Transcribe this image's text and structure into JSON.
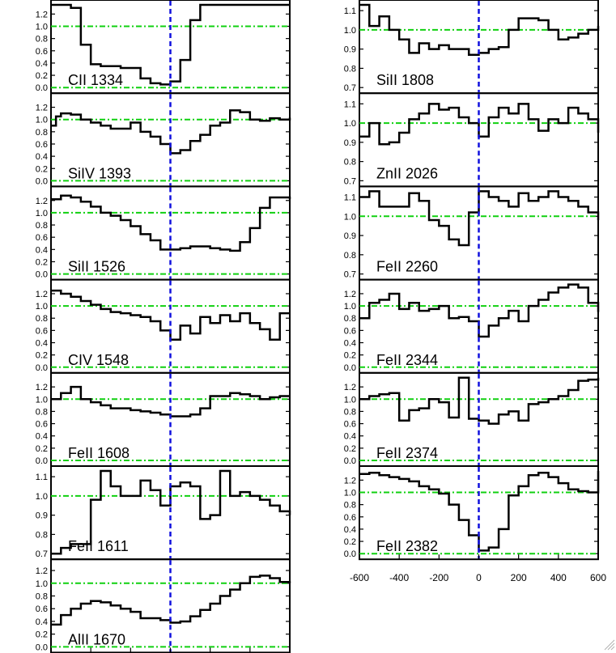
{
  "chart_data": {
    "type": "line",
    "xlim": [
      -600,
      600
    ],
    "x_ticks": [
      "-600",
      "-400",
      "-200",
      "0",
      "200",
      "400",
      "600"
    ],
    "continuum_level": 1.0,
    "zero_velocity": 0,
    "colors": {
      "spectrum": "#000000",
      "continuum": "#10d010",
      "zero_line": "#1010dd"
    },
    "panels": [
      {
        "column": 0,
        "label": "CII 1334",
        "ylim": [
          0,
          1.35
        ],
        "yticks": [
          "0.0",
          "0.2",
          "0.4",
          "0.6",
          "0.8",
          "1.0",
          "1.2"
        ],
        "x": [
          -600,
          -500,
          -450,
          -400,
          -350,
          -300,
          -250,
          -200,
          -150,
          -100,
          -50,
          0,
          50,
          100,
          150
        ],
        "y": [
          1.35,
          1.3,
          0.7,
          0.38,
          0.35,
          0.35,
          0.32,
          0.32,
          0.15,
          0.07,
          0.05,
          0.1,
          0.45,
          1.1,
          1.35
        ]
      },
      {
        "column": 0,
        "label": "SiIV 1393",
        "ylim": [
          0,
          1.35
        ],
        "yticks": [
          "0.0",
          "0.2",
          "0.4",
          "0.6",
          "0.8",
          "1.0",
          "1.2"
        ],
        "x": [
          -600,
          -575,
          -550,
          -500,
          -450,
          -400,
          -350,
          -300,
          -250,
          -200,
          -150,
          -100,
          -50,
          0,
          50,
          100,
          150,
          200,
          250,
          300,
          350,
          400,
          450,
          500,
          550,
          600
        ],
        "y": [
          0.9,
          1.05,
          1.1,
          1.08,
          1.0,
          0.95,
          0.9,
          0.85,
          0.85,
          0.95,
          0.8,
          0.72,
          0.6,
          0.45,
          0.5,
          0.65,
          0.75,
          0.9,
          0.95,
          1.15,
          1.12,
          1.0,
          0.98,
          1.02,
          1.0,
          1.03
        ]
      },
      {
        "column": 0,
        "label": "SiII 1526",
        "ylim": [
          0,
          1.35
        ],
        "yticks": [
          "0.0",
          "0.2",
          "0.4",
          "0.6",
          "0.8",
          "1.0",
          "1.2"
        ],
        "x": [
          -600,
          -550,
          -500,
          -450,
          -400,
          -350,
          -300,
          -250,
          -200,
          -150,
          -100,
          -50,
          0,
          50,
          100,
          150,
          200,
          250,
          300,
          350,
          400,
          450,
          500,
          550,
          600
        ],
        "y": [
          1.22,
          1.28,
          1.25,
          1.18,
          1.1,
          1.0,
          0.95,
          0.88,
          0.78,
          0.65,
          0.55,
          0.4,
          0.4,
          0.42,
          0.45,
          0.45,
          0.42,
          0.4,
          0.38,
          0.52,
          0.75,
          1.08,
          1.25,
          1.25,
          1.22
        ]
      },
      {
        "column": 0,
        "label": "CIV 1548",
        "ylim": [
          0,
          1.35
        ],
        "yticks": [
          "0.0",
          "0.2",
          "0.4",
          "0.6",
          "0.8",
          "1.0",
          "1.2"
        ],
        "x": [
          -600,
          -550,
          -500,
          -450,
          -400,
          -350,
          -300,
          -250,
          -200,
          -150,
          -100,
          -50,
          0,
          50,
          100,
          150,
          200,
          250,
          300,
          350,
          400,
          450,
          500,
          550,
          600
        ],
        "y": [
          1.25,
          1.2,
          1.15,
          1.08,
          1.02,
          0.95,
          0.9,
          0.88,
          0.85,
          0.82,
          0.75,
          0.6,
          0.45,
          0.68,
          0.55,
          0.82,
          0.72,
          0.85,
          0.75,
          0.88,
          0.72,
          0.62,
          0.45,
          0.88,
          0.88
        ]
      },
      {
        "column": 0,
        "label": "FeII 1608",
        "ylim": [
          0,
          1.35
        ],
        "yticks": [
          "0.0",
          "0.2",
          "0.4",
          "0.6",
          "0.8",
          "1.0",
          "1.2"
        ],
        "x": [
          -600,
          -550,
          -500,
          -450,
          -400,
          -350,
          -300,
          -250,
          -200,
          -150,
          -100,
          -50,
          0,
          50,
          100,
          150,
          200,
          250,
          300,
          350,
          400,
          450,
          500,
          550,
          600
        ],
        "y": [
          1.0,
          1.1,
          1.2,
          1.0,
          0.95,
          0.9,
          0.85,
          0.85,
          0.82,
          0.8,
          0.78,
          0.75,
          0.72,
          0.72,
          0.75,
          0.85,
          1.05,
          1.05,
          1.1,
          1.08,
          1.05,
          1.0,
          1.03,
          1.05,
          1.05
        ]
      },
      {
        "column": 0,
        "label": "FeII 1611",
        "ylim": [
          0.7,
          1.13
        ],
        "yticks": [
          "0.7",
          "0.8",
          "0.9",
          "1.0",
          "1.1"
        ],
        "x": [
          -600,
          -550,
          -500,
          -450,
          -400,
          -350,
          -300,
          -250,
          -200,
          -150,
          -100,
          -50,
          0,
          50,
          100,
          150,
          200,
          250,
          300,
          350,
          400,
          450,
          500,
          550,
          600
        ],
        "y": [
          0.7,
          0.73,
          0.75,
          0.75,
          0.98,
          1.13,
          1.05,
          1.0,
          1.0,
          1.08,
          1.03,
          0.95,
          1.05,
          1.07,
          1.05,
          0.88,
          0.9,
          1.13,
          1.0,
          1.02,
          1.0,
          0.98,
          0.95,
          0.92,
          0.9
        ]
      },
      {
        "column": 0,
        "label": "AlII 1670",
        "ylim": [
          0,
          1.3
        ],
        "yticks": [
          "0.0",
          "0.2",
          "0.4",
          "0.6",
          "0.8",
          "1.0",
          "1.2"
        ],
        "x": [
          -600,
          -550,
          -500,
          -450,
          -400,
          -350,
          -300,
          -250,
          -200,
          -150,
          -100,
          -50,
          0,
          50,
          100,
          150,
          200,
          250,
          300,
          350,
          400,
          450,
          500,
          550,
          600
        ],
        "y": [
          0.35,
          0.5,
          0.6,
          0.68,
          0.72,
          0.7,
          0.65,
          0.6,
          0.55,
          0.45,
          0.45,
          0.42,
          0.38,
          0.4,
          0.48,
          0.58,
          0.68,
          0.8,
          0.9,
          1.0,
          1.1,
          1.12,
          1.08,
          1.02,
          1.03
        ]
      },
      {
        "column": 1,
        "label": "SiII 1808",
        "ylim": [
          0.7,
          1.13
        ],
        "yticks": [
          "0.7",
          "0.8",
          "0.9",
          "1.0",
          "1.1"
        ],
        "x": [
          -600,
          -550,
          -500,
          -450,
          -400,
          -350,
          -300,
          -250,
          -200,
          -150,
          -100,
          -50,
          0,
          50,
          100,
          150,
          200,
          250,
          300,
          350,
          400,
          450,
          500,
          550,
          600
        ],
        "y": [
          1.13,
          1.02,
          1.07,
          1.0,
          0.95,
          0.88,
          0.93,
          0.9,
          0.92,
          0.9,
          0.9,
          0.87,
          0.88,
          0.9,
          0.91,
          1.0,
          1.06,
          1.06,
          1.05,
          1.0,
          0.95,
          0.96,
          0.98,
          1.0,
          1.02
        ]
      },
      {
        "column": 1,
        "label": "ZnII 2026",
        "ylim": [
          0.7,
          1.13
        ],
        "yticks": [
          "0.7",
          "0.8",
          "0.9",
          "1.0",
          "1.1"
        ],
        "x": [
          -600,
          -550,
          -500,
          -450,
          -400,
          -350,
          -300,
          -250,
          -200,
          -150,
          -100,
          -50,
          0,
          50,
          100,
          150,
          200,
          250,
          300,
          350,
          400,
          450,
          500,
          550,
          600
        ],
        "y": [
          0.93,
          1.0,
          0.89,
          0.9,
          0.95,
          1.02,
          1.05,
          1.1,
          1.07,
          1.08,
          1.03,
          1.0,
          0.93,
          1.03,
          1.08,
          1.05,
          1.1,
          1.02,
          0.96,
          1.02,
          1.0,
          1.08,
          1.05,
          1.02,
          0.95
        ]
      },
      {
        "column": 1,
        "label": "FeII 2260",
        "ylim": [
          0.7,
          1.13
        ],
        "yticks": [
          "0.7",
          "0.8",
          "0.9",
          "1.0",
          "1.1"
        ],
        "x": [
          -600,
          -550,
          -500,
          -450,
          -400,
          -350,
          -300,
          -250,
          -200,
          -150,
          -100,
          -50,
          0,
          50,
          100,
          150,
          200,
          250,
          300,
          350,
          400,
          450,
          500,
          550,
          600
        ],
        "y": [
          1.1,
          1.13,
          1.05,
          1.05,
          1.05,
          1.12,
          1.08,
          0.98,
          0.95,
          0.88,
          0.85,
          1.02,
          1.13,
          1.1,
          1.08,
          1.05,
          1.12,
          1.08,
          1.1,
          1.13,
          1.1,
          1.08,
          1.05,
          1.02,
          0.98
        ]
      },
      {
        "column": 1,
        "label": "FeII 2344",
        "ylim": [
          0,
          1.35
        ],
        "yticks": [
          "0.0",
          "0.2",
          "0.4",
          "0.6",
          "0.8",
          "1.0",
          "1.2"
        ],
        "x": [
          -600,
          -550,
          -500,
          -450,
          -400,
          -350,
          -300,
          -250,
          -200,
          -150,
          -100,
          -50,
          0,
          50,
          100,
          150,
          200,
          250,
          300,
          350,
          400,
          450,
          500,
          550,
          600
        ],
        "y": [
          0.8,
          1.05,
          1.1,
          1.2,
          0.95,
          1.05,
          0.92,
          0.95,
          1.0,
          0.8,
          0.82,
          0.75,
          0.5,
          0.68,
          0.8,
          0.92,
          0.75,
          1.0,
          1.1,
          1.22,
          1.3,
          1.35,
          1.3,
          1.05,
          0.9
        ]
      },
      {
        "column": 1,
        "label": "FeII 2374",
        "ylim": [
          0,
          1.35
        ],
        "yticks": [
          "0.0",
          "0.2",
          "0.4",
          "0.6",
          "0.8",
          "1.0",
          "1.2"
        ],
        "x": [
          -600,
          -550,
          -500,
          -450,
          -400,
          -350,
          -300,
          -250,
          -200,
          -150,
          -100,
          -50,
          0,
          50,
          100,
          150,
          200,
          250,
          300,
          350,
          400,
          450,
          500,
          550,
          600
        ],
        "y": [
          1.0,
          1.05,
          1.08,
          1.1,
          0.65,
          0.82,
          0.85,
          1.0,
          0.95,
          0.7,
          1.35,
          0.68,
          0.65,
          0.6,
          0.75,
          0.8,
          0.65,
          0.92,
          0.95,
          1.0,
          1.05,
          1.15,
          1.3,
          1.32,
          1.35
        ]
      },
      {
        "column": 1,
        "label": "FeII 2382",
        "ylim": [
          0,
          1.35
        ],
        "yticks": [
          "0.0",
          "0.2",
          "0.4",
          "0.6",
          "0.8",
          "1.0",
          "1.2"
        ],
        "x": [
          -600,
          -550,
          -500,
          -450,
          -400,
          -350,
          -300,
          -250,
          -200,
          -150,
          -100,
          -50,
          0,
          50,
          100,
          150,
          200,
          250,
          300,
          350,
          400,
          450,
          500,
          550,
          600
        ],
        "y": [
          1.3,
          1.32,
          1.28,
          1.25,
          1.22,
          1.18,
          1.1,
          1.05,
          0.98,
          0.8,
          0.55,
          0.3,
          0.05,
          0.1,
          0.4,
          0.95,
          1.1,
          1.28,
          1.32,
          1.25,
          1.15,
          1.05,
          1.02,
          1.0,
          1.35
        ]
      }
    ]
  }
}
